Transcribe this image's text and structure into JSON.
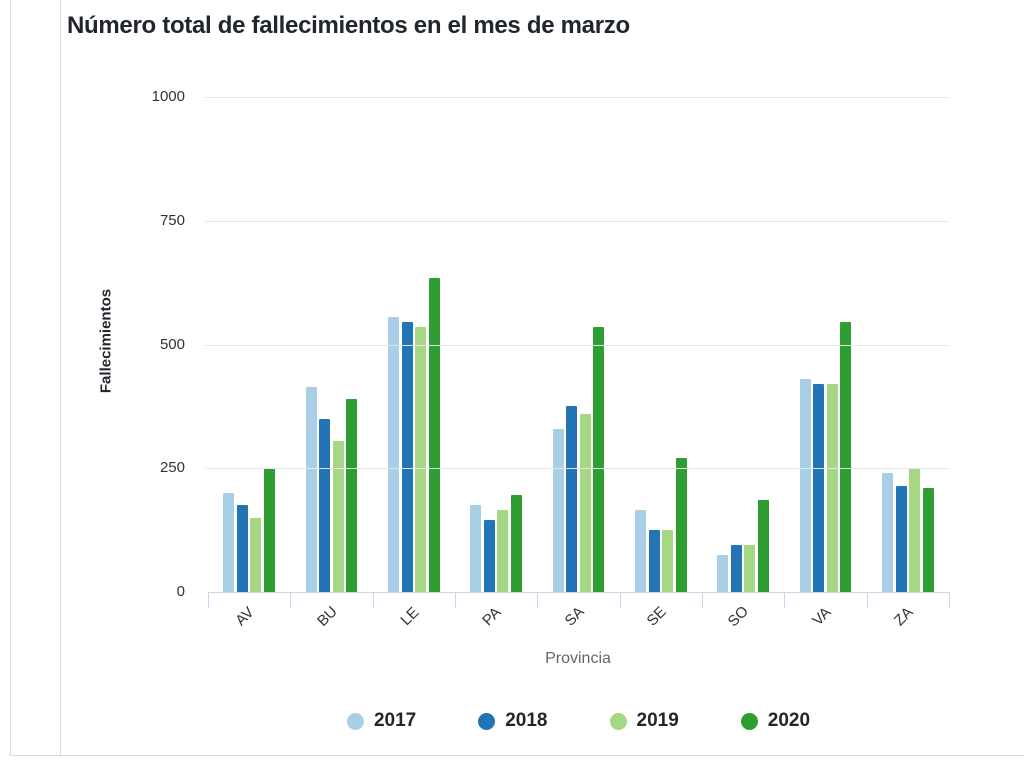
{
  "chart_data": {
    "type": "bar",
    "title": "Número total de fallecimientos en el mes de marzo",
    "xlabel": "Provincia",
    "ylabel": "Fallecimientos",
    "categories": [
      "AV",
      "BU",
      "LE",
      "PA",
      "SA",
      "SE",
      "SO",
      "VA",
      "ZA"
    ],
    "series": [
      {
        "name": "2017",
        "color": "#a9cfe6",
        "values": [
          200,
          415,
          555,
          175,
          330,
          165,
          75,
          430,
          240
        ]
      },
      {
        "name": "2018",
        "color": "#2274b5",
        "values": [
          175,
          350,
          545,
          145,
          375,
          125,
          95,
          420,
          215
        ]
      },
      {
        "name": "2019",
        "color": "#a6d785",
        "values": [
          150,
          305,
          535,
          165,
          360,
          125,
          95,
          420,
          250
        ]
      },
      {
        "name": "2020",
        "color": "#2f9e32",
        "values": [
          250,
          390,
          635,
          195,
          535,
          270,
          185,
          545,
          210
        ]
      }
    ],
    "ylim": [
      0,
      1000
    ],
    "yticks": [
      0,
      250,
      500,
      750,
      1000
    ],
    "grid": true,
    "legend_position": "bottom",
    "colors": {
      "gridline": "#e6e6e6",
      "axis_line": "#ccd6eb",
      "tick_label": "#333333",
      "axis_title": "#666666",
      "title_text": "#21262c",
      "panel_border": "#d7dbe3"
    }
  }
}
